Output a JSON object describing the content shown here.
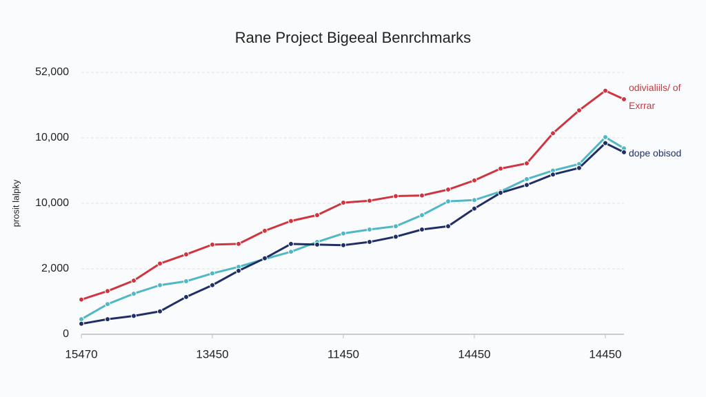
{
  "chart_data": {
    "type": "line",
    "title": "Rane Project Bigeeal Benrchmarks",
    "y_label": "prosit lalpky",
    "categories": [
      "15470",
      null,
      null,
      null,
      null,
      "13450",
      null,
      null,
      null,
      null,
      "11450",
      null,
      null,
      null,
      null,
      "14450",
      null,
      null,
      null,
      null,
      "14450",
      null
    ],
    "y_labels": [
      "0",
      "2,000",
      "10,000",
      "10,000",
      "52,000"
    ],
    "ylim": [
      0,
      4
    ],
    "grid": true,
    "series": [
      {
        "name": "odivialiils/ of Exrrar",
        "color": "#d0343f",
        "values": [
          0.53,
          0.66,
          0.82,
          1.08,
          1.22,
          1.37,
          1.38,
          1.58,
          1.73,
          1.82,
          2.01,
          2.04,
          2.11,
          2.12,
          2.21,
          2.35,
          2.53,
          2.61,
          3.07,
          3.42,
          3.72,
          3.59
        ]
      },
      {
        "color": "#4fb8c4",
        "values": [
          0.23,
          0.46,
          0.62,
          0.75,
          0.81,
          0.93,
          1.03,
          1.15,
          1.26,
          1.41,
          1.54,
          1.6,
          1.65,
          1.82,
          2.03,
          2.05,
          2.18,
          2.37,
          2.5,
          2.6,
          3.01,
          2.84
        ]
      },
      {
        "name": "dope obisod",
        "color": "#1f2f66",
        "values": [
          0.16,
          0.23,
          0.28,
          0.35,
          0.57,
          0.75,
          0.97,
          1.16,
          1.38,
          1.37,
          1.36,
          1.41,
          1.49,
          1.6,
          1.65,
          1.92,
          2.16,
          2.28,
          2.44,
          2.54,
          2.92,
          2.78
        ]
      }
    ]
  }
}
